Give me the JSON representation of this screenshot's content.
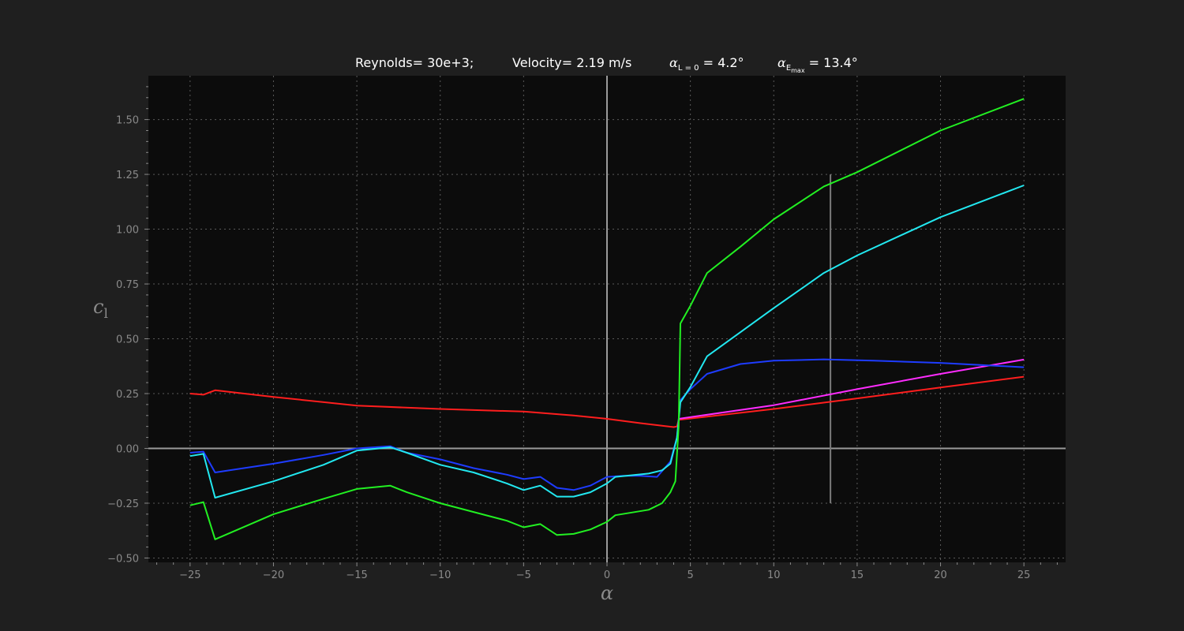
{
  "header": {
    "reynolds": "Reynolds= 30e+3;",
    "velocity": "Velocity= 2.19 m/s",
    "alpha_l0_label": "α",
    "alpha_l0_sub": "L = 0",
    "alpha_l0_value": " = 4.2°",
    "alpha_emax_label": "α",
    "alpha_emax_sub": "E",
    "alpha_emax_subsub": "max",
    "alpha_emax_value": " = 13.4°"
  },
  "colors": {
    "page_bg": "#1f1f1f",
    "plot_bg": "#0c0c0c",
    "grid": "#5a5a5a",
    "axis_line": "#9a9a9a",
    "tick_text": "#8a8a8a",
    "marker_line": "#7a7a7a"
  },
  "chart_data": {
    "type": "line",
    "xlabel": "α",
    "ylabel": "c_l",
    "xlim": [
      -27.5,
      27.5
    ],
    "ylim": [
      -0.52,
      1.7
    ],
    "xticks": [
      -25,
      -20,
      -15,
      -10,
      -5,
      0,
      5,
      10,
      15,
      20,
      25
    ],
    "xtick_labels": [
      "−25",
      "−20",
      "−15",
      "−10",
      "−5",
      "0",
      "5",
      "10",
      "15",
      "20",
      "25"
    ],
    "yticks": [
      -0.5,
      -0.25,
      0.0,
      0.25,
      0.5,
      0.75,
      1.0,
      1.25,
      1.5
    ],
    "ytick_labels": [
      "−0.50",
      "−0.25",
      "0.00",
      "0.25",
      "0.50",
      "0.75",
      "1.00",
      "1.25",
      "1.50"
    ],
    "grid": true,
    "reference_lines": {
      "zero_x": 0,
      "zero_y": 0,
      "alpha_emax": {
        "x": 13.4,
        "y_range": [
          -0.25,
          1.25
        ]
      }
    },
    "series": [
      {
        "color": "#ff1e1e",
        "points": [
          [
            -25,
            0.25
          ],
          [
            -24.2,
            0.245
          ],
          [
            -23.5,
            0.265
          ],
          [
            -20,
            0.235
          ],
          [
            -15,
            0.195
          ],
          [
            -10,
            0.18
          ],
          [
            -5,
            0.168
          ],
          [
            -2,
            0.15
          ],
          [
            0,
            0.135
          ],
          [
            2,
            0.115
          ],
          [
            4,
            0.097
          ],
          [
            4.2,
            0.1
          ],
          [
            4.3,
            0.13
          ],
          [
            10,
            0.18
          ],
          [
            15,
            0.228
          ],
          [
            20,
            0.278
          ],
          [
            25,
            0.327
          ]
        ]
      },
      {
        "color": "#ff2cff",
        "points": [
          [
            4.3,
            0.135
          ],
          [
            10,
            0.197
          ],
          [
            15,
            0.27
          ],
          [
            20,
            0.34
          ],
          [
            25,
            0.405
          ]
        ]
      },
      {
        "color": "#1e3cff",
        "points": [
          [
            -25,
            -0.02
          ],
          [
            -24.2,
            -0.015
          ],
          [
            -23.5,
            -0.11
          ],
          [
            -20,
            -0.07
          ],
          [
            -17,
            -0.03
          ],
          [
            -15,
            0.0
          ],
          [
            -13,
            0.01
          ],
          [
            -12,
            -0.02
          ],
          [
            -10,
            -0.05
          ],
          [
            -8,
            -0.09
          ],
          [
            -6,
            -0.12
          ],
          [
            -5,
            -0.14
          ],
          [
            -4,
            -0.13
          ],
          [
            -3,
            -0.18
          ],
          [
            -2,
            -0.19
          ],
          [
            -1,
            -0.17
          ],
          [
            0,
            -0.13
          ],
          [
            1,
            -0.125
          ],
          [
            2,
            -0.125
          ],
          [
            3,
            -0.13
          ],
          [
            3.8,
            -0.06
          ],
          [
            4.2,
            0.05
          ],
          [
            4.4,
            0.22
          ],
          [
            5,
            0.27
          ],
          [
            6,
            0.34
          ],
          [
            8,
            0.385
          ],
          [
            10,
            0.4
          ],
          [
            13,
            0.406
          ],
          [
            16,
            0.4
          ],
          [
            20,
            0.39
          ],
          [
            25,
            0.37
          ]
        ]
      },
      {
        "color": "#22e8f0",
        "points": [
          [
            -25,
            -0.035
          ],
          [
            -24.2,
            -0.025
          ],
          [
            -23.5,
            -0.225
          ],
          [
            -20,
            -0.15
          ],
          [
            -17,
            -0.075
          ],
          [
            -15,
            -0.01
          ],
          [
            -13,
            0.005
          ],
          [
            -12,
            -0.02
          ],
          [
            -10,
            -0.075
          ],
          [
            -8,
            -0.11
          ],
          [
            -6,
            -0.16
          ],
          [
            -5,
            -0.19
          ],
          [
            -4,
            -0.17
          ],
          [
            -3,
            -0.22
          ],
          [
            -2,
            -0.22
          ],
          [
            -1,
            -0.2
          ],
          [
            0,
            -0.16
          ],
          [
            0.5,
            -0.13
          ],
          [
            2.5,
            -0.115
          ],
          [
            3.3,
            -0.1
          ],
          [
            3.8,
            -0.07
          ],
          [
            4.2,
            0.05
          ],
          [
            4.4,
            0.21
          ],
          [
            5,
            0.28
          ],
          [
            6,
            0.42
          ],
          [
            8,
            0.53
          ],
          [
            10,
            0.64
          ],
          [
            13,
            0.8
          ],
          [
            15,
            0.88
          ],
          [
            20,
            1.055
          ],
          [
            25,
            1.2
          ]
        ]
      },
      {
        "color": "#22f022",
        "points": [
          [
            -25,
            -0.26
          ],
          [
            -24.2,
            -0.245
          ],
          [
            -23.5,
            -0.415
          ],
          [
            -20,
            -0.3
          ],
          [
            -17,
            -0.23
          ],
          [
            -15,
            -0.185
          ],
          [
            -13,
            -0.17
          ],
          [
            -12,
            -0.2
          ],
          [
            -10,
            -0.25
          ],
          [
            -8,
            -0.29
          ],
          [
            -6,
            -0.33
          ],
          [
            -5,
            -0.36
          ],
          [
            -4,
            -0.345
          ],
          [
            -3,
            -0.395
          ],
          [
            -2,
            -0.39
          ],
          [
            -1,
            -0.37
          ],
          [
            0,
            -0.335
          ],
          [
            0.5,
            -0.305
          ],
          [
            2.5,
            -0.28
          ],
          [
            3.3,
            -0.25
          ],
          [
            3.8,
            -0.2
          ],
          [
            4.1,
            -0.15
          ],
          [
            4.3,
            0.1
          ],
          [
            4.4,
            0.57
          ],
          [
            5,
            0.65
          ],
          [
            6,
            0.8
          ],
          [
            8,
            0.92
          ],
          [
            10,
            1.045
          ],
          [
            13,
            1.195
          ],
          [
            15,
            1.26
          ],
          [
            20,
            1.45
          ],
          [
            25,
            1.595
          ]
        ]
      }
    ]
  }
}
